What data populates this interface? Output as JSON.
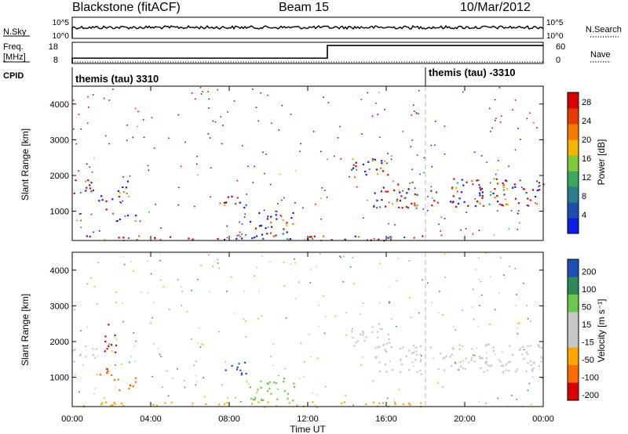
{
  "header": {
    "station": "Blackstone (fitACF)",
    "beam": "Beam 15",
    "date": "10/Mar/2012"
  },
  "top_panel": {
    "nsky_label": "N.Sky",
    "nsearch_label": "N.Search",
    "freq_label": "Freq.",
    "freq_unit": "[MHz]",
    "nave_label": "Nave",
    "cpid_label": "CPID",
    "nsky_ticks": [
      "10^5",
      "10^0"
    ],
    "nsearch_ticks": [
      "10^5",
      "10^0"
    ],
    "freq_ticks": [
      "18",
      "8"
    ],
    "nave_ticks": [
      "60",
      "0"
    ],
    "cpid_segments": [
      {
        "start_hour": 0,
        "text": "themis (tau) 3310"
      },
      {
        "start_hour": 18,
        "text": "themis (tau) -3310"
      }
    ]
  },
  "panels": {
    "ylabel": "Slant Range [km]",
    "xlabel": "Time UT",
    "power_label": "Power [dB]",
    "velocity_label": "Velocity [m s⁻¹]"
  },
  "colors": {
    "power": [
      "#0a1ee6",
      "#1a4fb0",
      "#2a7d8c",
      "#3aa860",
      "#80c83c",
      "#f5b400",
      "#f57800",
      "#e63c00",
      "#dc0000"
    ],
    "velocity": [
      "#dc0000",
      "#ff6a00",
      "#ffa500",
      "#c8c8c8",
      "#c8c8c8",
      "#6cc84a",
      "#2e8a5a",
      "#1e50b4"
    ]
  },
  "chart_data": [
    {
      "type": "line",
      "name": "sounding-parameters",
      "x_range_hours": [
        0,
        24
      ],
      "freq_mhz": [
        {
          "x": 0,
          "y": 10.5
        },
        {
          "x": 13,
          "y": 10.5
        },
        {
          "x": 13,
          "y": 16.5
        },
        {
          "x": 24,
          "y": 16.5
        }
      ],
      "nave": [
        {
          "x": 0,
          "y": 4
        },
        {
          "x": 24,
          "y": 4
        }
      ],
      "nsky": "approximately 10^3.5 throughout the day with small fluctuations",
      "nsearch": "approximately 10^0 (minimum) throughout"
    },
    {
      "type": "heatmap",
      "name": "Power",
      "x_range_hours": [
        0,
        24
      ],
      "y_range_km": [
        180,
        4500
      ],
      "xticks": [
        "00:00",
        "04:00",
        "08:00",
        "12:00",
        "16:00",
        "20:00",
        "00:00"
      ],
      "yticks": [
        1000,
        2000,
        3000,
        4000
      ],
      "colorbar_range": [
        0,
        30
      ],
      "colorbar_ticks": [
        4,
        8,
        12,
        16,
        20,
        24,
        28
      ],
      "scatter_regions": [
        {
          "t": [
            0.0,
            1.3
          ],
          "r": [
            1450,
            1900
          ],
          "value": 18
        },
        {
          "t": [
            1.3,
            2.2
          ],
          "r": [
            1050,
            1450
          ],
          "value": 8
        },
        {
          "t": [
            2.0,
            3.4
          ],
          "r": [
            720,
            1000
          ],
          "value": 16
        },
        {
          "t": [
            2.3,
            2.9
          ],
          "r": [
            1400,
            2100
          ],
          "value": 6
        },
        {
          "t": [
            7.6,
            9.0
          ],
          "r": [
            1050,
            1450
          ],
          "value": 10
        },
        {
          "t": [
            9.0,
            11.3
          ],
          "r": [
            320,
            1000
          ],
          "value": 4
        },
        {
          "t": [
            0.5,
            18.0
          ],
          "r": [
            190,
            330
          ],
          "value": 14
        },
        {
          "t": [
            14.2,
            16.2
          ],
          "r": [
            1900,
            2500
          ],
          "value": 5
        },
        {
          "t": [
            15.3,
            17.8
          ],
          "r": [
            1100,
            1900
          ],
          "value": 22
        },
        {
          "t": [
            18.2,
            24.0
          ],
          "r": [
            1150,
            1950
          ],
          "value": 20
        }
      ]
    },
    {
      "type": "heatmap",
      "name": "Velocity",
      "x_range_hours": [
        0,
        24
      ],
      "y_range_km": [
        180,
        4500
      ],
      "xticks": [
        "00:00",
        "04:00",
        "08:00",
        "12:00",
        "16:00",
        "20:00",
        "00:00"
      ],
      "yticks": [
        1000,
        2000,
        3000,
        4000
      ],
      "colorbar_range": [
        -250,
        250
      ],
      "colorbar_ticks": [
        200,
        100,
        50,
        15,
        -15,
        -50,
        -100,
        -200
      ],
      "scatter_regions": [
        {
          "t": [
            0.0,
            1.3
          ],
          "r": [
            1450,
            1900
          ],
          "value": 0
        },
        {
          "t": [
            1.3,
            2.2
          ],
          "r": [
            1050,
            1450
          ],
          "value": -200
        },
        {
          "t": [
            1.5,
            2.2
          ],
          "r": [
            1700,
            2500
          ],
          "value": -220
        },
        {
          "t": [
            2.0,
            3.4
          ],
          "r": [
            650,
            1000
          ],
          "value": -120
        },
        {
          "t": [
            7.6,
            9.0
          ],
          "r": [
            1050,
            1450
          ],
          "value": 160
        },
        {
          "t": [
            9.0,
            11.3
          ],
          "r": [
            320,
            1000
          ],
          "value": 30
        },
        {
          "t": [
            0.5,
            18.0
          ],
          "r": [
            190,
            330
          ],
          "value": -60
        },
        {
          "t": [
            14.2,
            16.2
          ],
          "r": [
            1900,
            2500
          ],
          "value": 0
        },
        {
          "t": [
            15.3,
            17.8
          ],
          "r": [
            1100,
            1900
          ],
          "value": 0
        },
        {
          "t": [
            18.2,
            24.0
          ],
          "r": [
            1150,
            1950
          ],
          "value": 0
        }
      ]
    }
  ]
}
